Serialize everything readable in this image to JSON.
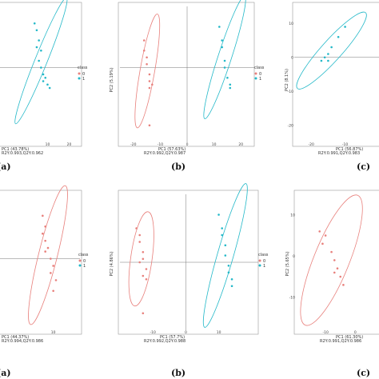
{
  "colors": {
    "class0": "#e8807c",
    "class1": "#22b8c8",
    "axis": "#777777",
    "frame": "#999999"
  },
  "legend": {
    "title": "class",
    "labels": [
      "0",
      "1"
    ]
  },
  "chart_data": [
    {
      "type": "scatter",
      "label": "(a)",
      "xlabel": "PC1 (43.78%)",
      "ylabel": "",
      "stats": "R2Y:0.993,Q2Y:0.962",
      "xticks": [
        "10",
        "20"
      ],
      "series": [
        {
          "name": "1",
          "points": [
            [
              4,
              13
            ],
            [
              5,
              11
            ],
            [
              6,
              8
            ],
            [
              5,
              6
            ],
            [
              7,
              5
            ],
            [
              6,
              2
            ],
            [
              7,
              0
            ],
            [
              8,
              -2
            ],
            [
              9,
              -3
            ],
            [
              8,
              -4
            ],
            [
              10,
              -5
            ],
            [
              11,
              -6
            ]
          ]
        }
      ],
      "ellipses": [
        {
          "series": "1",
          "cx": 7,
          "cy": 2,
          "rx": 20,
          "ry": 2.2,
          "angle": -68
        }
      ]
    },
    {
      "type": "scatter",
      "label": "(b)",
      "xlabel": "PC1 (57.63%)",
      "ylabel": "PC2 (5.19%)",
      "stats": "R2Y:0.992,Q2Y:0.987",
      "xticks": [
        "-20",
        "-10",
        "0",
        "10",
        "20"
      ],
      "series": [
        {
          "name": "0",
          "points": [
            [
              -16,
              8
            ],
            [
              -16,
              5
            ],
            [
              -15,
              3
            ],
            [
              -15,
              1
            ],
            [
              -14,
              -2
            ],
            [
              -14,
              -4
            ],
            [
              -14,
              -6
            ],
            [
              -13,
              -5
            ],
            [
              -14,
              -17
            ]
          ]
        },
        {
          "name": "1",
          "points": [
            [
              12,
              12
            ],
            [
              13,
              8
            ],
            [
              13,
              6
            ],
            [
              14,
              2
            ],
            [
              14,
              0
            ],
            [
              15,
              -3
            ],
            [
              16,
              -5
            ],
            [
              16,
              -6
            ]
          ]
        }
      ],
      "ellipses": [
        {
          "series": "0",
          "cx": -14.8,
          "cy": -1,
          "rx": 17,
          "ry": 2.4,
          "angle": -80
        },
        {
          "series": "1",
          "cx": 14,
          "cy": 3,
          "rx": 19,
          "ry": 2.2,
          "angle": -72
        }
      ]
    },
    {
      "type": "scatter",
      "label": "(c)",
      "xlabel": "PC1 (56.87%)",
      "ylabel": "PC2 (8.1%)",
      "stats": "R2Y:0.991,Q2Y:0.983",
      "xticks": [
        "-20",
        "-10"
      ],
      "yticks": [
        "10",
        "0",
        "-10",
        "-20"
      ],
      "series": [
        {
          "name": "1",
          "points": [
            [
              -10,
              9
            ],
            [
              -12,
              6
            ],
            [
              -14,
              3
            ],
            [
              -15,
              1
            ],
            [
              -16,
              0
            ],
            [
              -17,
              -1
            ],
            [
              -15,
              -1
            ]
          ]
        }
      ],
      "ellipses": [
        {
          "series": "1",
          "cx": -14,
          "cy": 2,
          "rx": 15,
          "ry": 3,
          "angle": -48
        }
      ]
    },
    {
      "type": "scatter",
      "label": "(a)",
      "xlabel": "PC1 (44.37%)",
      "ylabel": "",
      "stats": "R2Y:0.994,Q2Y:0.986",
      "xticks": [
        "10"
      ],
      "series": [
        {
          "name": "0",
          "points": [
            [
              6,
              12
            ],
            [
              7,
              9
            ],
            [
              6,
              7
            ],
            [
              7,
              5
            ],
            [
              8,
              3
            ],
            [
              7,
              2
            ],
            [
              9,
              0
            ],
            [
              10,
              -2
            ],
            [
              9,
              -4
            ],
            [
              11,
              -6
            ],
            [
              10,
              -9
            ]
          ]
        }
      ],
      "ellipses": [
        {
          "series": "0",
          "cx": 8,
          "cy": 1,
          "rx": 20,
          "ry": 3,
          "angle": -76
        }
      ]
    },
    {
      "type": "scatter",
      "label": "(b)",
      "xlabel": "PC1 (57.7%)",
      "ylabel": "PC2 (4.86%)",
      "stats": "R2Y:0.992,Q2Y:0.988",
      "xticks": [
        "-10",
        "0",
        "10"
      ],
      "series": [
        {
          "name": "0",
          "points": [
            [
              -15,
              10
            ],
            [
              -14,
              8
            ],
            [
              -14,
              6
            ],
            [
              -13,
              3
            ],
            [
              -13,
              1
            ],
            [
              -14,
              0
            ],
            [
              -12,
              -2
            ],
            [
              -13,
              -4
            ],
            [
              -12,
              -5
            ],
            [
              -13,
              -15
            ]
          ]
        },
        {
          "name": "1",
          "points": [
            [
              10,
              14
            ],
            [
              11,
              10
            ],
            [
              11,
              8
            ],
            [
              12,
              5
            ],
            [
              12,
              2
            ],
            [
              13,
              -1
            ],
            [
              13,
              -3
            ],
            [
              14,
              -5
            ],
            [
              14,
              -7
            ]
          ]
        }
      ],
      "ellipses": [
        {
          "series": "0",
          "cx": -13.5,
          "cy": 1,
          "rx": 14,
          "ry": 3.2,
          "angle": -82
        },
        {
          "series": "1",
          "cx": 12,
          "cy": 2,
          "rx": 22,
          "ry": 2.4,
          "angle": -74
        }
      ]
    },
    {
      "type": "scatter",
      "label": "(c)",
      "xlabel": "PC1 (61.30%)",
      "ylabel": "PC2 (5.65%)",
      "stats": "R2Y:0.991,Q2Y:0.986",
      "xticks": [
        "-10",
        "0"
      ],
      "yticks": [
        "10",
        "0",
        "-10"
      ],
      "series": [
        {
          "name": "0",
          "points": [
            [
              -12,
              6
            ],
            [
              -10,
              5
            ],
            [
              -11,
              3
            ],
            [
              -8,
              1
            ],
            [
              -7,
              -1
            ],
            [
              -6,
              -3
            ],
            [
              -7,
              -4
            ],
            [
              -5,
              -5
            ],
            [
              -4,
              -7
            ]
          ]
        }
      ],
      "ellipses": [
        {
          "series": "0",
          "cx": -8,
          "cy": -1,
          "rx": 17,
          "ry": 5,
          "angle": -68
        }
      ]
    }
  ]
}
